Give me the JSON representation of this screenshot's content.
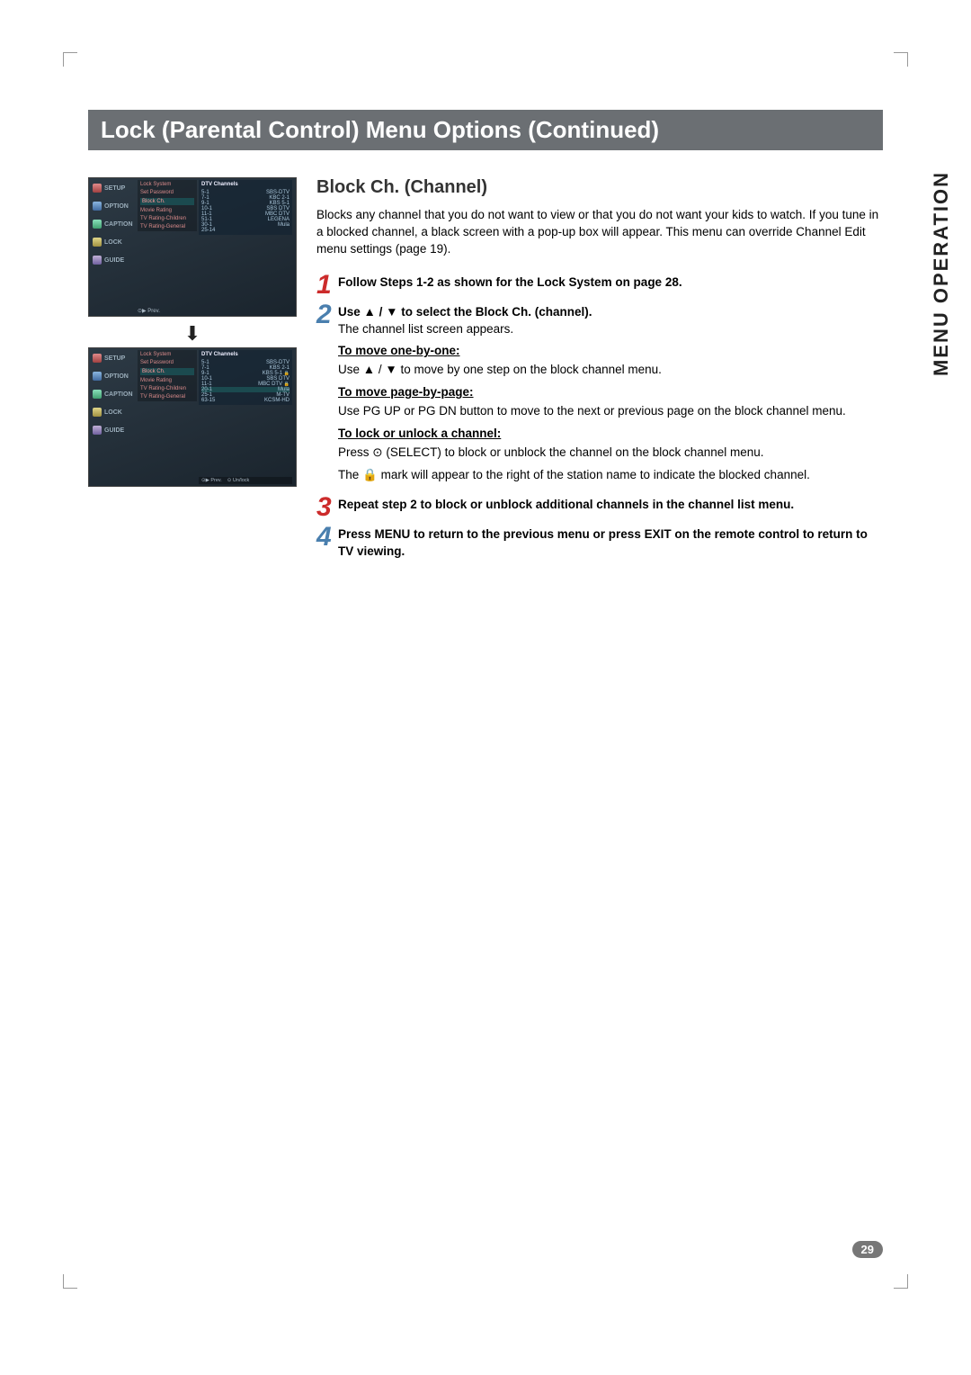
{
  "title_bar": "Lock (Parental Control) Menu Options (Continued)",
  "side_label": "MENU OPERATION",
  "page_number": "29",
  "section_title": "Block Ch. (Channel)",
  "intro": "Blocks any channel that you do not want to view or that you do not want your kids to watch. If you tune in a blocked channel, a black screen with a pop-up box will appear. This menu can override Channel Edit menu settings (page 19).",
  "steps": {
    "s1": "Follow Steps 1-2 as shown for the Lock System on page 28.",
    "s2_lead": "Use ▲ / ▼ to select the Block Ch. (channel).",
    "s2_body": "The channel list screen appears.",
    "s2_h1": "To move one-by-one:",
    "s2_b1": "Use ▲ / ▼ to move by one step on the block channel menu.",
    "s2_h2": "To move page-by-page:",
    "s2_b2": "Use PG UP or PG DN button to move to the next or previous page on the block channel menu.",
    "s2_h3": "To lock or unlock a channel:",
    "s2_b3a": "Press ⊙ (SELECT) to block or unblock the channel on the block channel menu.",
    "s2_b3b": "The 🔒 mark will appear to the right of the station name to indicate the blocked channel.",
    "s3": "Repeat step 2 to block or unblock additional channels in the channel list menu.",
    "s4": "Press MENU to return to the previous menu or press EXIT on the remote control to return to TV viewing."
  },
  "tv": {
    "tabs": [
      "SETUP",
      "OPTION",
      "CAPTION",
      "LOCK",
      "GUIDE"
    ],
    "mid1": [
      "Lock System",
      "Set Password",
      "Block Ch.",
      "Movie Rating",
      "TV Rating-Children",
      "TV Rating-General"
    ],
    "foot1": "⊙▶ Prev.",
    "list_hdr": "DTV Channels",
    "list1": [
      {
        "n": "5-1",
        "c": "SBS-DTV"
      },
      {
        "n": "7-1",
        "c": "KBC 2-1"
      },
      {
        "n": "9-1",
        "c": "KBS 5-1"
      },
      {
        "n": "10-1",
        "c": "SBS DTV"
      },
      {
        "n": "11-1",
        "c": "MBC DTV"
      },
      {
        "n": "51-1",
        "c": "LEGENA"
      },
      {
        "n": "30-1",
        "c": "Mula"
      },
      {
        "n": "25-14",
        "c": ""
      }
    ],
    "list2": [
      {
        "n": "5-1",
        "c": "SBS-DTV"
      },
      {
        "n": "7-1",
        "c": "KBS 2-1"
      },
      {
        "n": "9-1",
        "c": "KBS 5-1",
        "lk": true
      },
      {
        "n": "10-1",
        "c": "SBS DTV"
      },
      {
        "n": "11-1",
        "c": "MBC DTV",
        "lk": true
      },
      {
        "n": "20-1",
        "c": "Mula",
        "sel": true
      },
      {
        "n": "25-1",
        "c": "M-TV"
      },
      {
        "n": "63-15",
        "c": "KCSM-HD"
      }
    ],
    "foot2a": "⊙▶ Prev.",
    "foot2b": "⊙ Un/lock"
  }
}
